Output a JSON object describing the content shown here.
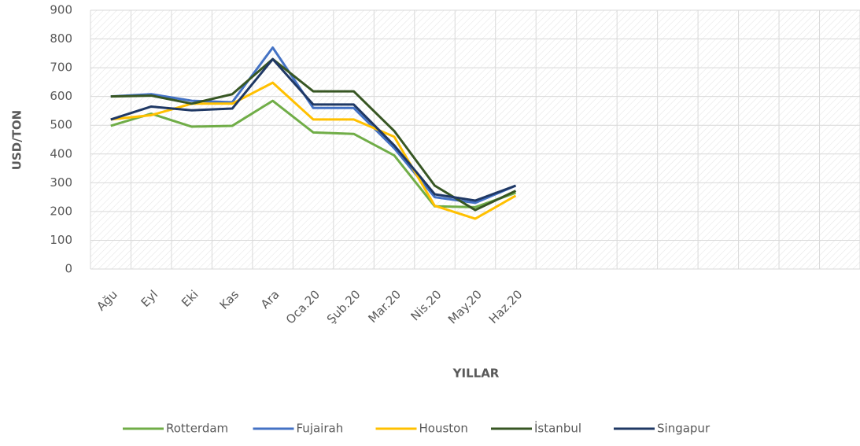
{
  "chart_data": {
    "type": "line",
    "x_label": "YILLAR",
    "y_label": "USD/TON",
    "categories": [
      "Ağu",
      "Eyl",
      "Eki",
      "Kas",
      "Ara",
      "Oca.20",
      "Şub.20",
      "Mar.20",
      "Nis.20",
      "May.20",
      "Haz.20",
      null,
      null,
      null,
      null,
      null,
      null,
      null,
      null
    ],
    "series": [
      {
        "name": "Rotterdam",
        "color": "#70ad47",
        "values": [
          498,
          540,
          495,
          498,
          585,
          475,
          470,
          395,
          218,
          215,
          265,
          null,
          null,
          null,
          null,
          null,
          null,
          null,
          null
        ]
      },
      {
        "name": "Fujairah",
        "color": "#4472c4",
        "values": [
          600,
          608,
          585,
          580,
          770,
          560,
          560,
          420,
          250,
          230,
          290,
          null,
          null,
          null,
          null,
          null,
          null,
          null,
          null
        ]
      },
      {
        "name": "Houston",
        "color": "#ffc000",
        "values": [
          520,
          535,
          575,
          575,
          648,
          520,
          520,
          460,
          220,
          175,
          255,
          null,
          null,
          null,
          null,
          null,
          null,
          null,
          null
        ]
      },
      {
        "name": "İstanbul",
        "color": "#375623",
        "values": [
          600,
          603,
          575,
          608,
          730,
          618,
          618,
          480,
          290,
          205,
          272,
          null,
          null,
          null,
          null,
          null,
          null,
          null,
          null
        ]
      },
      {
        "name": "Singapur",
        "color": "#1f3864",
        "values": [
          520,
          565,
          552,
          558,
          730,
          572,
          572,
          430,
          260,
          238,
          290,
          null,
          null,
          null,
          null,
          null,
          null,
          null,
          null
        ]
      }
    ],
    "ylim": [
      0,
      900
    ],
    "yticks": [
      0,
      100,
      200,
      300,
      400,
      500,
      600,
      700,
      800,
      900
    ],
    "grid": true,
    "legend": "bottom"
  }
}
